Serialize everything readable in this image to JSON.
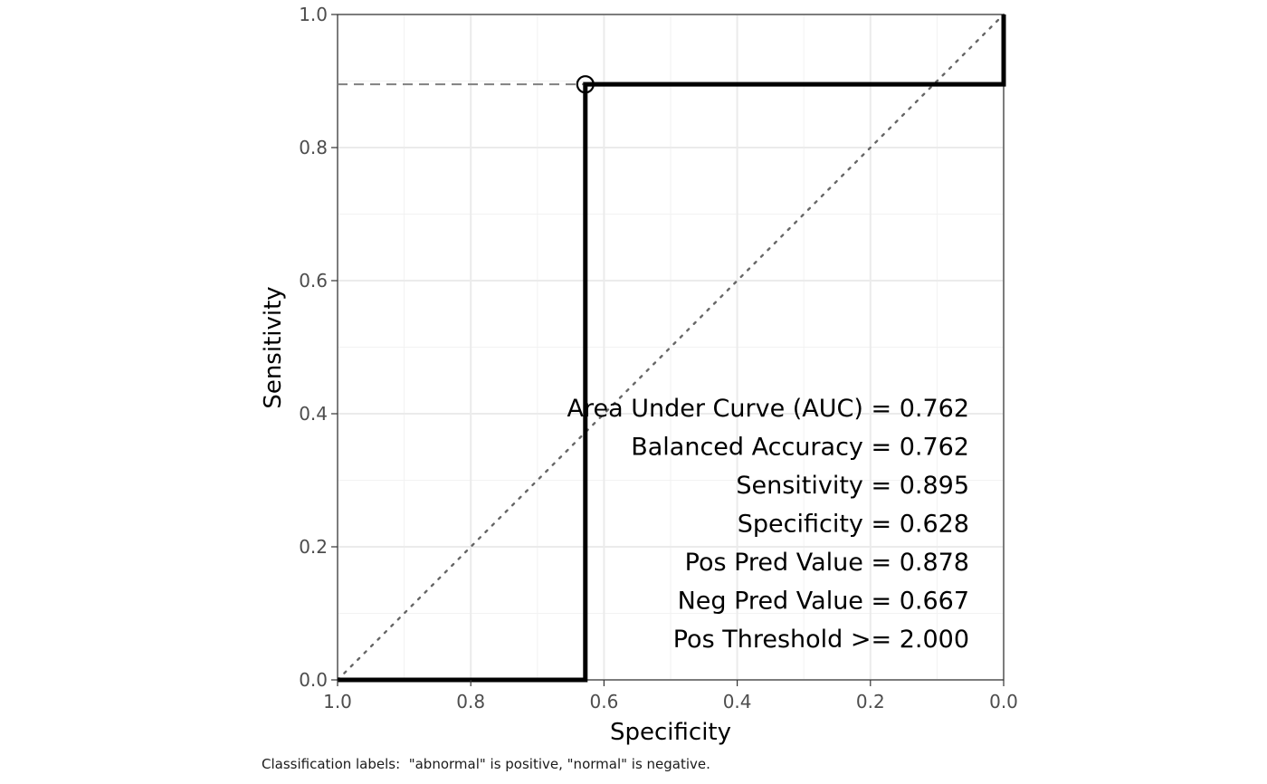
{
  "chart_data": {
    "type": "line",
    "xlabel": "Specificity",
    "ylabel": "Sensitivity",
    "xlim": [
      1.0,
      0.0
    ],
    "ylim": [
      0.0,
      1.0
    ],
    "x_reversed": true,
    "x_ticks": [
      1.0,
      0.8,
      0.6,
      0.4,
      0.2,
      0.0
    ],
    "x_tick_labels": [
      "1.0",
      "0.8",
      "0.6",
      "0.4",
      "0.2",
      "0.0"
    ],
    "y_ticks": [
      0.0,
      0.2,
      0.4,
      0.6,
      0.8,
      1.0
    ],
    "y_tick_labels": [
      "0.0",
      "0.2",
      "0.4",
      "0.6",
      "0.8",
      "1.0"
    ],
    "grid": true,
    "series": [
      {
        "style": "solid-thick",
        "color": "#000000",
        "points": [
          {
            "specificity": 1.0,
            "sensitivity": 0.0
          },
          {
            "specificity": 0.628,
            "sensitivity": 0.0
          },
          {
            "specificity": 0.628,
            "sensitivity": 0.895
          },
          {
            "specificity": 0.0,
            "sensitivity": 0.895
          },
          {
            "specificity": 0.0,
            "sensitivity": 1.0
          }
        ]
      }
    ],
    "reference_line": {
      "style": "dotted",
      "color": "#666666",
      "points": [
        {
          "specificity": 1.0,
          "sensitivity": 0.0
        },
        {
          "specificity": 0.0,
          "sensitivity": 1.0
        }
      ]
    },
    "threshold_point": {
      "specificity": 0.628,
      "sensitivity": 0.895,
      "marker": "open-circle"
    },
    "threshold_guide": {
      "style": "dashed",
      "color": "#808080",
      "from": {
        "specificity": 1.0,
        "sensitivity": 0.895
      },
      "to": {
        "specificity": 0.628,
        "sensitivity": 0.895
      }
    },
    "annotations": [
      "Area Under Curve (AUC) = 0.762",
      "Balanced Accuracy = 0.762",
      "Sensitivity = 0.895",
      "Specificity = 0.628",
      "Pos Pred Value = 0.878",
      "Neg Pred Value = 0.667",
      "Pos Threshold >= 2.000"
    ],
    "caption": "Classification labels:  \"abnormal\" is positive, \"normal\" is negative."
  }
}
